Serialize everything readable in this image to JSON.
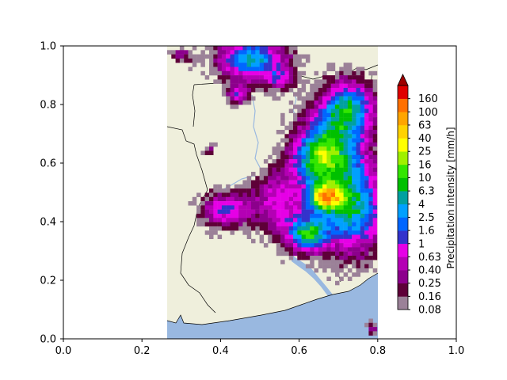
{
  "axes": {
    "x_ticks": [
      "0.0",
      "0.2",
      "0.4",
      "0.6",
      "0.8",
      "1.0"
    ],
    "y_ticks": [
      "0.0",
      "0.2",
      "0.4",
      "0.6",
      "0.8",
      "1.0"
    ],
    "xlim": [
      0,
      1
    ],
    "ylim": [
      0,
      1
    ]
  },
  "map": {
    "extent_x": [
      0.265,
      0.8
    ],
    "land_color": "#efefdc",
    "water_color": "#99b8e0",
    "border_color": "#000000"
  },
  "colorbar": {
    "label": "Precipitation intensity [mm/h]",
    "extend": "max",
    "extend_color": "#9e0000",
    "ticks": [
      "0.08",
      "0.16",
      "0.25",
      "0.40",
      "0.63",
      "1",
      "1.6",
      "2.5",
      "4",
      "6.3",
      "10",
      "16",
      "25",
      "40",
      "63",
      "100",
      "160"
    ],
    "colors": [
      "#9b8198",
      "#5e0038",
      "#8c008c",
      "#b400b4",
      "#e600e6",
      "#3333cc",
      "#0066ff",
      "#00a0ff",
      "#00a0a0",
      "#00c000",
      "#33e600",
      "#a0f000",
      "#ffff00",
      "#ffd200",
      "#ffa500",
      "#ff7000",
      "#e00000"
    ]
  },
  "chart_data": {
    "type": "heatmap",
    "title": "",
    "xlabel": "",
    "ylabel": "",
    "xlim": [
      0,
      1
    ],
    "ylim": [
      0,
      1
    ],
    "grid": false,
    "colorbar_label": "Precipitation intensity [mm/h]",
    "colorbar_levels": [
      0.08,
      0.16,
      0.25,
      0.4,
      0.63,
      1,
      1.6,
      2.5,
      4,
      6.3,
      10,
      16,
      25,
      40,
      63,
      100,
      160
    ]
  }
}
